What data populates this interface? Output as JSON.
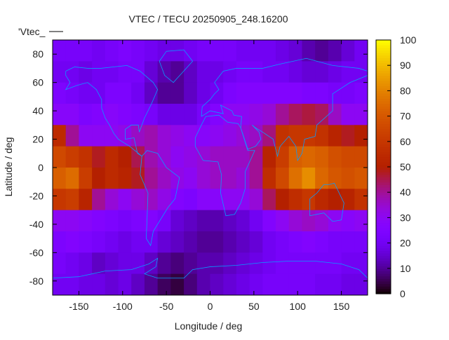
{
  "chart_data": {
    "type": "heatmap",
    "title": "VTEC / TECU 20250905_248.16200",
    "legend_entry": "'Vtec_",
    "legend_placement": "top-left",
    "xlabel": "Longitude / deg",
    "ylabel": "Latitude / deg",
    "xlim": [
      -180,
      180
    ],
    "ylim": [
      -90,
      90
    ],
    "xticks": [
      -150,
      -100,
      -50,
      0,
      50,
      100,
      150
    ],
    "yticks": [
      80,
      60,
      40,
      20,
      0,
      -20,
      -40,
      -60,
      -80
    ],
    "colorbar": {
      "range": [
        0,
        100
      ],
      "ticks": [
        0,
        10,
        20,
        30,
        40,
        50,
        60,
        70,
        80,
        90,
        100
      ],
      "palette": "gnuplot rgbformulae 7,5,15"
    },
    "grid_lon_centers": [
      -172.5,
      -157.5,
      -142.5,
      -127.5,
      -112.5,
      -97.5,
      -82.5,
      -67.5,
      -52.5,
      -37.5,
      -22.5,
      -7.5,
      7.5,
      22.5,
      37.5,
      52.5,
      67.5,
      82.5,
      97.5,
      112.5,
      127.5,
      142.5,
      157.5,
      172.5
    ],
    "grid_lat_centers": [
      82.5,
      67.5,
      52.5,
      37.5,
      22.5,
      7.5,
      -7.5,
      -22.5,
      -37.5,
      -52.5,
      -67.5,
      -82.5
    ],
    "z": [
      [
        22,
        22,
        22,
        20,
        22,
        24,
        22,
        20,
        18,
        18,
        20,
        22,
        22,
        22,
        20,
        20,
        20,
        18,
        16,
        12,
        10,
        12,
        16,
        20
      ],
      [
        20,
        20,
        18,
        20,
        20,
        22,
        22,
        16,
        12,
        10,
        14,
        18,
        18,
        20,
        22,
        22,
        20,
        20,
        18,
        16,
        16,
        18,
        20,
        20
      ],
      [
        24,
        22,
        20,
        20,
        24,
        24,
        20,
        14,
        10,
        10,
        14,
        18,
        20,
        24,
        26,
        26,
        26,
        26,
        26,
        24,
        24,
        22,
        22,
        24
      ],
      [
        28,
        28,
        24,
        26,
        28,
        26,
        24,
        22,
        18,
        18,
        18,
        22,
        26,
        30,
        30,
        32,
        34,
        40,
        44,
        46,
        44,
        36,
        30,
        30
      ],
      [
        55,
        40,
        30,
        30,
        30,
        32,
        36,
        38,
        34,
        32,
        30,
        28,
        30,
        32,
        34,
        36,
        42,
        58,
        60,
        60,
        58,
        52,
        48,
        50
      ],
      [
        66,
        62,
        58,
        48,
        55,
        50,
        45,
        38,
        34,
        30,
        32,
        34,
        36,
        36,
        36,
        40,
        52,
        62,
        72,
        74,
        72,
        68,
        66,
        66
      ],
      [
        72,
        75,
        62,
        50,
        55,
        52,
        48,
        40,
        36,
        32,
        30,
        34,
        36,
        36,
        34,
        40,
        56,
        66,
        76,
        82,
        74,
        70,
        68,
        70
      ],
      [
        60,
        62,
        52,
        40,
        34,
        30,
        34,
        36,
        32,
        26,
        24,
        28,
        28,
        30,
        30,
        34,
        44,
        50,
        56,
        60,
        54,
        50,
        52,
        58
      ],
      [
        30,
        30,
        28,
        26,
        24,
        22,
        24,
        26,
        22,
        16,
        14,
        12,
        12,
        14,
        16,
        20,
        26,
        30,
        34,
        36,
        34,
        30,
        28,
        30
      ],
      [
        24,
        26,
        24,
        22,
        20,
        18,
        20,
        20,
        16,
        14,
        12,
        10,
        10,
        12,
        14,
        16,
        20,
        22,
        24,
        26,
        24,
        22,
        22,
        22
      ],
      [
        22,
        20,
        18,
        14,
        16,
        18,
        18,
        14,
        10,
        8,
        10,
        12,
        12,
        14,
        16,
        18,
        20,
        22,
        22,
        22,
        22,
        22,
        20,
        20
      ],
      [
        20,
        20,
        18,
        18,
        16,
        18,
        14,
        10,
        6,
        4,
        8,
        12,
        14,
        16,
        18,
        20,
        22,
        22,
        22,
        22,
        20,
        20,
        18,
        18
      ]
    ],
    "coastline_color": "#0a9cff"
  }
}
